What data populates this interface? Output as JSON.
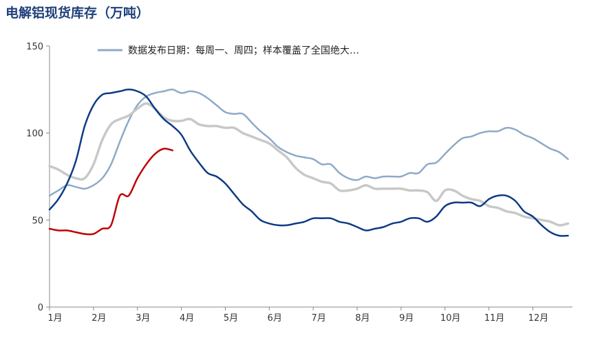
{
  "chart_data": {
    "type": "line",
    "title": "电解铝现货库存（万吨）",
    "ylim": [
      0,
      150
    ],
    "y_ticks": [
      "0",
      "50",
      "100",
      "150"
    ],
    "x_ticks": [
      "1月",
      "2月",
      "3月",
      "4月",
      "5月",
      "6月",
      "7月",
      "8月",
      "9月",
      "10月",
      "11月",
      "12月"
    ],
    "legend": {
      "text": "数据发布日期：每周一、周四；样本覆盖了全国绝大…",
      "placement": "top"
    },
    "grid": false,
    "colors": [
      "#8ea9c8",
      "#c8c8c8",
      "#0d3a85",
      "#c00000"
    ],
    "series": [
      {
        "color": "#8ea9c8",
        "x": [
          1.0,
          1.2,
          1.4,
          1.6,
          1.8,
          2.0,
          2.2,
          2.4,
          2.6,
          2.8,
          3.0,
          3.2,
          3.4,
          3.6,
          3.8,
          4.0,
          4.2,
          4.4,
          4.6,
          4.8,
          5.0,
          5.2,
          5.4,
          5.6,
          5.8,
          6.0,
          6.2,
          6.4,
          6.6,
          6.8,
          7.0,
          7.2,
          7.4,
          7.6,
          7.8,
          8.0,
          8.2,
          8.4,
          8.6,
          8.8,
          9.0,
          9.2,
          9.4,
          9.6,
          9.8,
          10.0,
          10.2,
          10.4,
          10.6,
          10.8,
          11.0,
          11.2,
          11.4,
          11.6,
          11.8,
          12.0,
          12.2,
          12.4,
          12.6,
          12.8
        ],
        "values": [
          64,
          67,
          70,
          69,
          68,
          70,
          74,
          82,
          95,
          107,
          116,
          121,
          123,
          124,
          125,
          123,
          124,
          123,
          120,
          116,
          112,
          111,
          111,
          106,
          101,
          97,
          92,
          89,
          87,
          86,
          85,
          82,
          82,
          77,
          74,
          73,
          75,
          74,
          75,
          75,
          75,
          77,
          77,
          82,
          83,
          88,
          93,
          97,
          98,
          100,
          101,
          101,
          103,
          102,
          99,
          97,
          94,
          91,
          89,
          85
        ]
      },
      {
        "color": "#c8c8c8",
        "x": [
          1.0,
          1.2,
          1.4,
          1.6,
          1.8,
          2.0,
          2.2,
          2.4,
          2.6,
          2.8,
          3.0,
          3.2,
          3.4,
          3.6,
          3.8,
          4.0,
          4.2,
          4.4,
          4.6,
          4.8,
          5.0,
          5.2,
          5.4,
          5.6,
          5.8,
          6.0,
          6.2,
          6.4,
          6.6,
          6.8,
          7.0,
          7.2,
          7.4,
          7.6,
          7.8,
          8.0,
          8.2,
          8.4,
          8.6,
          8.8,
          9.0,
          9.2,
          9.4,
          9.6,
          9.8,
          10.0,
          10.2,
          10.4,
          10.6,
          10.8,
          11.0,
          11.2,
          11.4,
          11.6,
          11.8,
          12.0,
          12.2,
          12.4,
          12.6,
          12.8
        ],
        "values": [
          81,
          79,
          76,
          74,
          74,
          82,
          96,
          105,
          108,
          110,
          114,
          117,
          114,
          109,
          107,
          107,
          108,
          105,
          104,
          104,
          103,
          103,
          100,
          98,
          96,
          94,
          90,
          86,
          80,
          76,
          74,
          72,
          71,
          67,
          67,
          68,
          70,
          68,
          68,
          68,
          68,
          67,
          67,
          66,
          61,
          67,
          67,
          64,
          62,
          61,
          58,
          57,
          55,
          54,
          52,
          51,
          50,
          49,
          47,
          48
        ]
      },
      {
        "color": "#0d3a85",
        "x": [
          1.0,
          1.2,
          1.4,
          1.6,
          1.8,
          2.0,
          2.2,
          2.4,
          2.6,
          2.8,
          3.0,
          3.2,
          3.4,
          3.6,
          3.8,
          4.0,
          4.2,
          4.4,
          4.6,
          4.8,
          5.0,
          5.2,
          5.4,
          5.6,
          5.8,
          6.0,
          6.2,
          6.4,
          6.6,
          6.8,
          7.0,
          7.2,
          7.4,
          7.6,
          7.8,
          8.0,
          8.2,
          8.4,
          8.6,
          8.8,
          9.0,
          9.2,
          9.4,
          9.6,
          9.8,
          10.0,
          10.2,
          10.4,
          10.6,
          10.8,
          11.0,
          11.2,
          11.4,
          11.6,
          11.8,
          12.0,
          12.2,
          12.4,
          12.6,
          12.8
        ],
        "values": [
          56,
          62,
          71,
          84,
          104,
          116,
          122,
          123,
          124,
          125,
          124,
          121,
          114,
          108,
          104,
          99,
          90,
          83,
          77,
          75,
          71,
          65,
          59,
          55,
          50,
          48,
          47,
          47,
          48,
          49,
          51,
          51,
          51,
          49,
          48,
          46,
          44,
          45,
          46,
          48,
          49,
          51,
          51,
          49,
          52,
          58,
          60,
          60,
          60,
          58,
          62,
          64,
          64,
          61,
          55,
          52,
          47,
          43,
          41,
          41
        ]
      },
      {
        "color": "#c00000",
        "x": [
          1.0,
          1.2,
          1.4,
          1.6,
          1.8,
          2.0,
          2.2,
          2.4,
          2.6,
          2.8,
          3.0,
          3.2,
          3.4,
          3.6,
          3.8
        ],
        "values": [
          45,
          44,
          44,
          43,
          42,
          42,
          45,
          47,
          64,
          64,
          74,
          82,
          88,
          91,
          90
        ]
      }
    ]
  }
}
